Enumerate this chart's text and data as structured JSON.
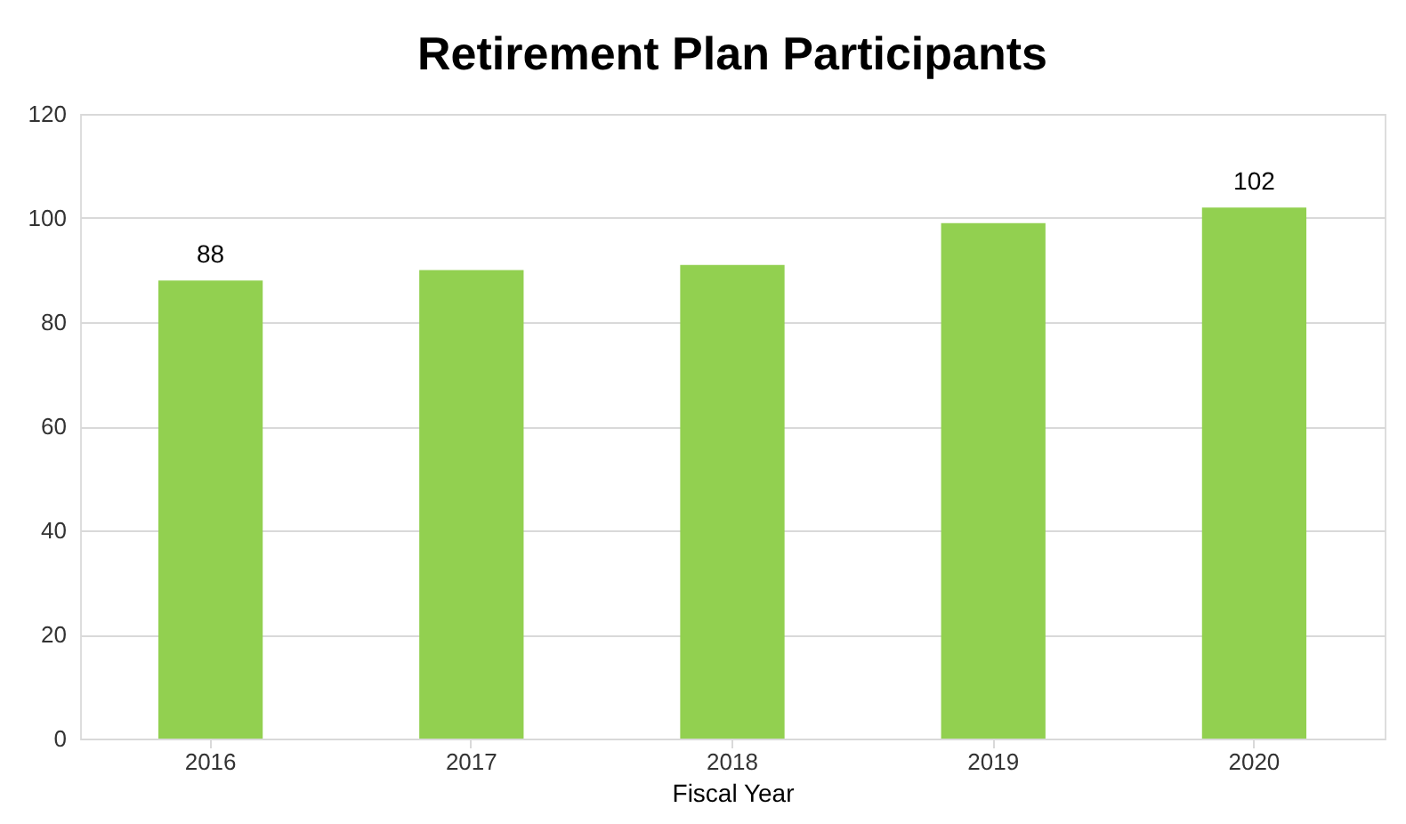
{
  "chart_data": {
    "type": "bar",
    "title": "Retirement Plan Participants",
    "xlabel": "Fiscal Year",
    "categories": [
      "2016",
      "2017",
      "2018",
      "2019",
      "2020"
    ],
    "values": [
      88,
      90,
      91,
      99,
      102
    ],
    "value_labels": [
      "88",
      null,
      null,
      null,
      "102"
    ],
    "color": "#92d050",
    "ylim": [
      0,
      120
    ],
    "yticks": [
      0,
      20,
      40,
      60,
      80,
      100,
      120
    ],
    "grid": "y"
  }
}
